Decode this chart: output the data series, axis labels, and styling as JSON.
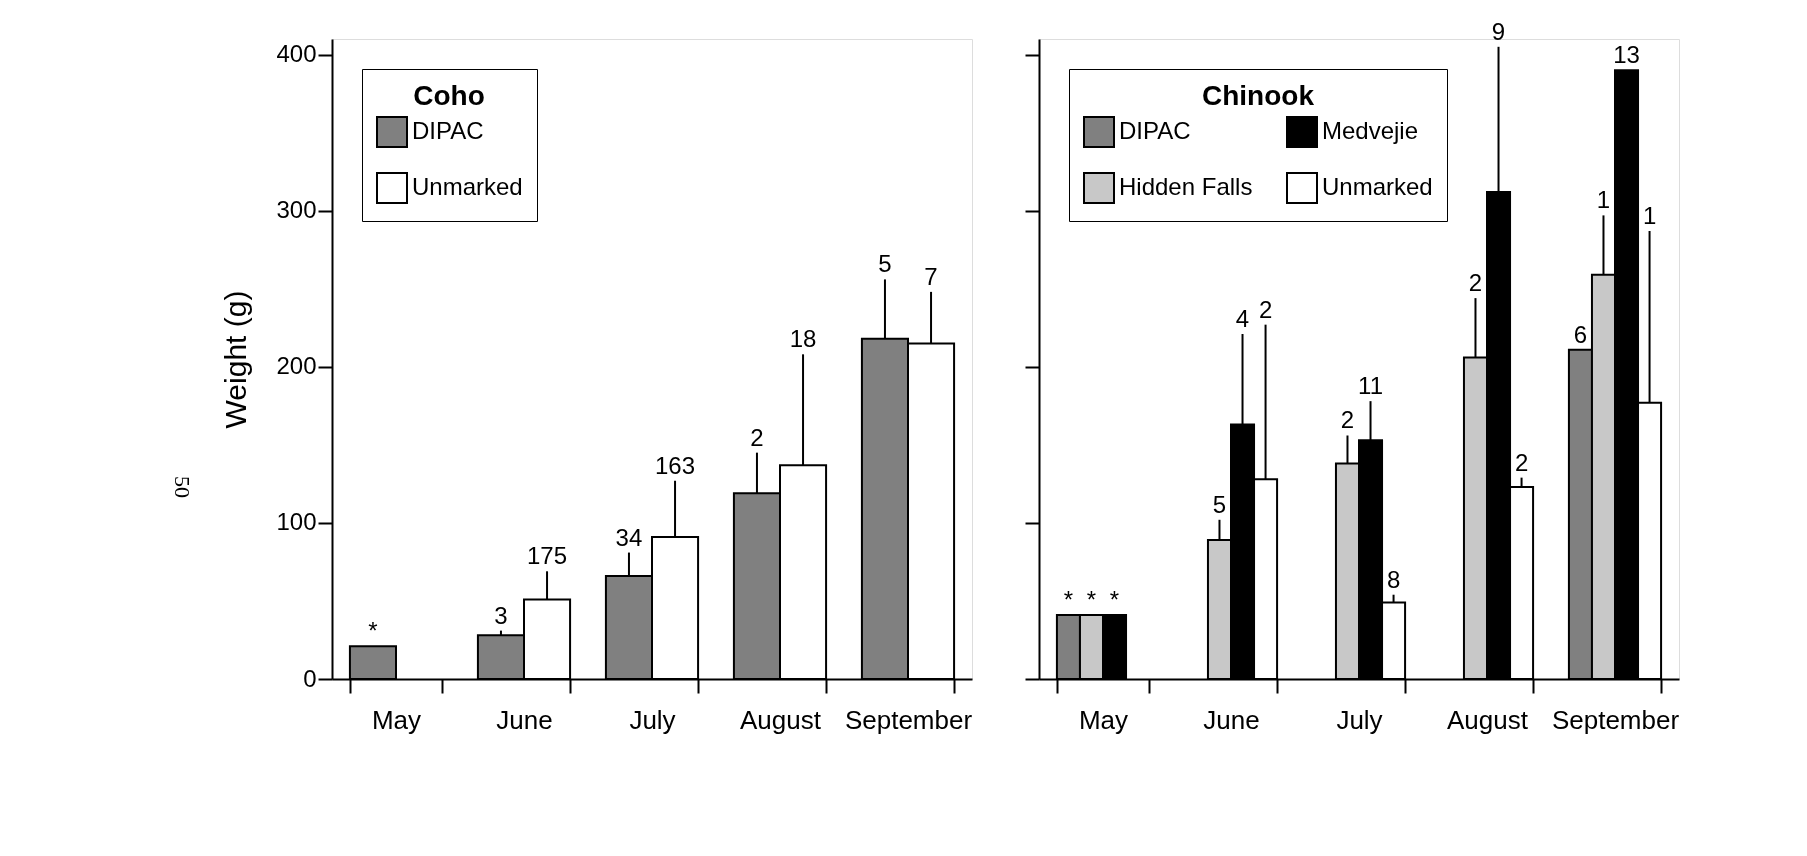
{
  "chart_data": [
    {
      "type": "bar",
      "legend_title": "Coho",
      "ylabel": "Weight (g)",
      "categories": [
        "May",
        "June",
        "July",
        "August",
        "September"
      ],
      "series": [
        {
          "name": "DIPAC",
          "color": "#808080",
          "values": [
            21,
            28,
            66,
            119,
            218
          ],
          "errors": [
            null,
            [
              28,
              31
            ],
            [
              66,
              81
            ],
            [
              119,
              145
            ],
            [
              218,
              256
            ]
          ]
        },
        {
          "name": "Unmarked",
          "color": "#ffffff",
          "values": [
            null,
            51,
            91,
            137,
            215
          ],
          "errors": [
            null,
            [
              51,
              69
            ],
            [
              91,
              127
            ],
            [
              137,
              208
            ],
            [
              215,
              248
            ]
          ]
        }
      ],
      "ylim": [
        0,
        410
      ],
      "yticks": [
        0,
        100,
        200,
        300,
        400
      ],
      "grid": false,
      "legend": "top left",
      "annotations": [
        "*",
        "3",
        "175",
        "34",
        "163",
        "2",
        "18",
        "5",
        "7",
        "50"
      ]
    },
    {
      "type": "bar",
      "legend_title": "Chinook",
      "categories": [
        "May",
        "June",
        "July",
        "August",
        "September"
      ],
      "series": [
        {
          "name": "DIPAC",
          "color": "#808080",
          "values": [
            41,
            null,
            null,
            null,
            211
          ],
          "errors": [
            null,
            null,
            null,
            null,
            null
          ]
        },
        {
          "name": "Hidden Falls",
          "color": "#c8c8c8",
          "values": [
            41,
            89,
            138,
            206,
            259
          ],
          "errors": [
            null,
            [
              89,
              102
            ],
            [
              138,
              156
            ],
            [
              206,
              244
            ],
            [
              259,
              297
            ]
          ]
        },
        {
          "name": "Medvejie",
          "color": "#000000",
          "values": [
            41,
            163,
            153,
            312,
            390
          ],
          "errors": [
            null,
            [
              163,
              221
            ],
            [
              153,
              178
            ],
            [
              312,
              405
            ],
            null
          ]
        },
        {
          "name": "Unmarked",
          "color": "#ffffff",
          "values": [
            null,
            128,
            49,
            123,
            177
          ],
          "errors": [
            null,
            [
              128,
              227
            ],
            [
              49,
              54
            ],
            [
              123,
              129
            ],
            [
              177,
              287
            ]
          ]
        }
      ],
      "ylim": [
        0,
        410
      ],
      "yticks": [
        0,
        100,
        200,
        300,
        400
      ],
      "grid": false,
      "legend": "top left",
      "tick_labels": "x",
      "annotations": [
        "*",
        "*",
        "*",
        "5",
        "4",
        "2",
        "2",
        "11",
        "8",
        "2",
        "9",
        "2",
        "6",
        "1",
        "13",
        "1"
      ]
    }
  ]
}
